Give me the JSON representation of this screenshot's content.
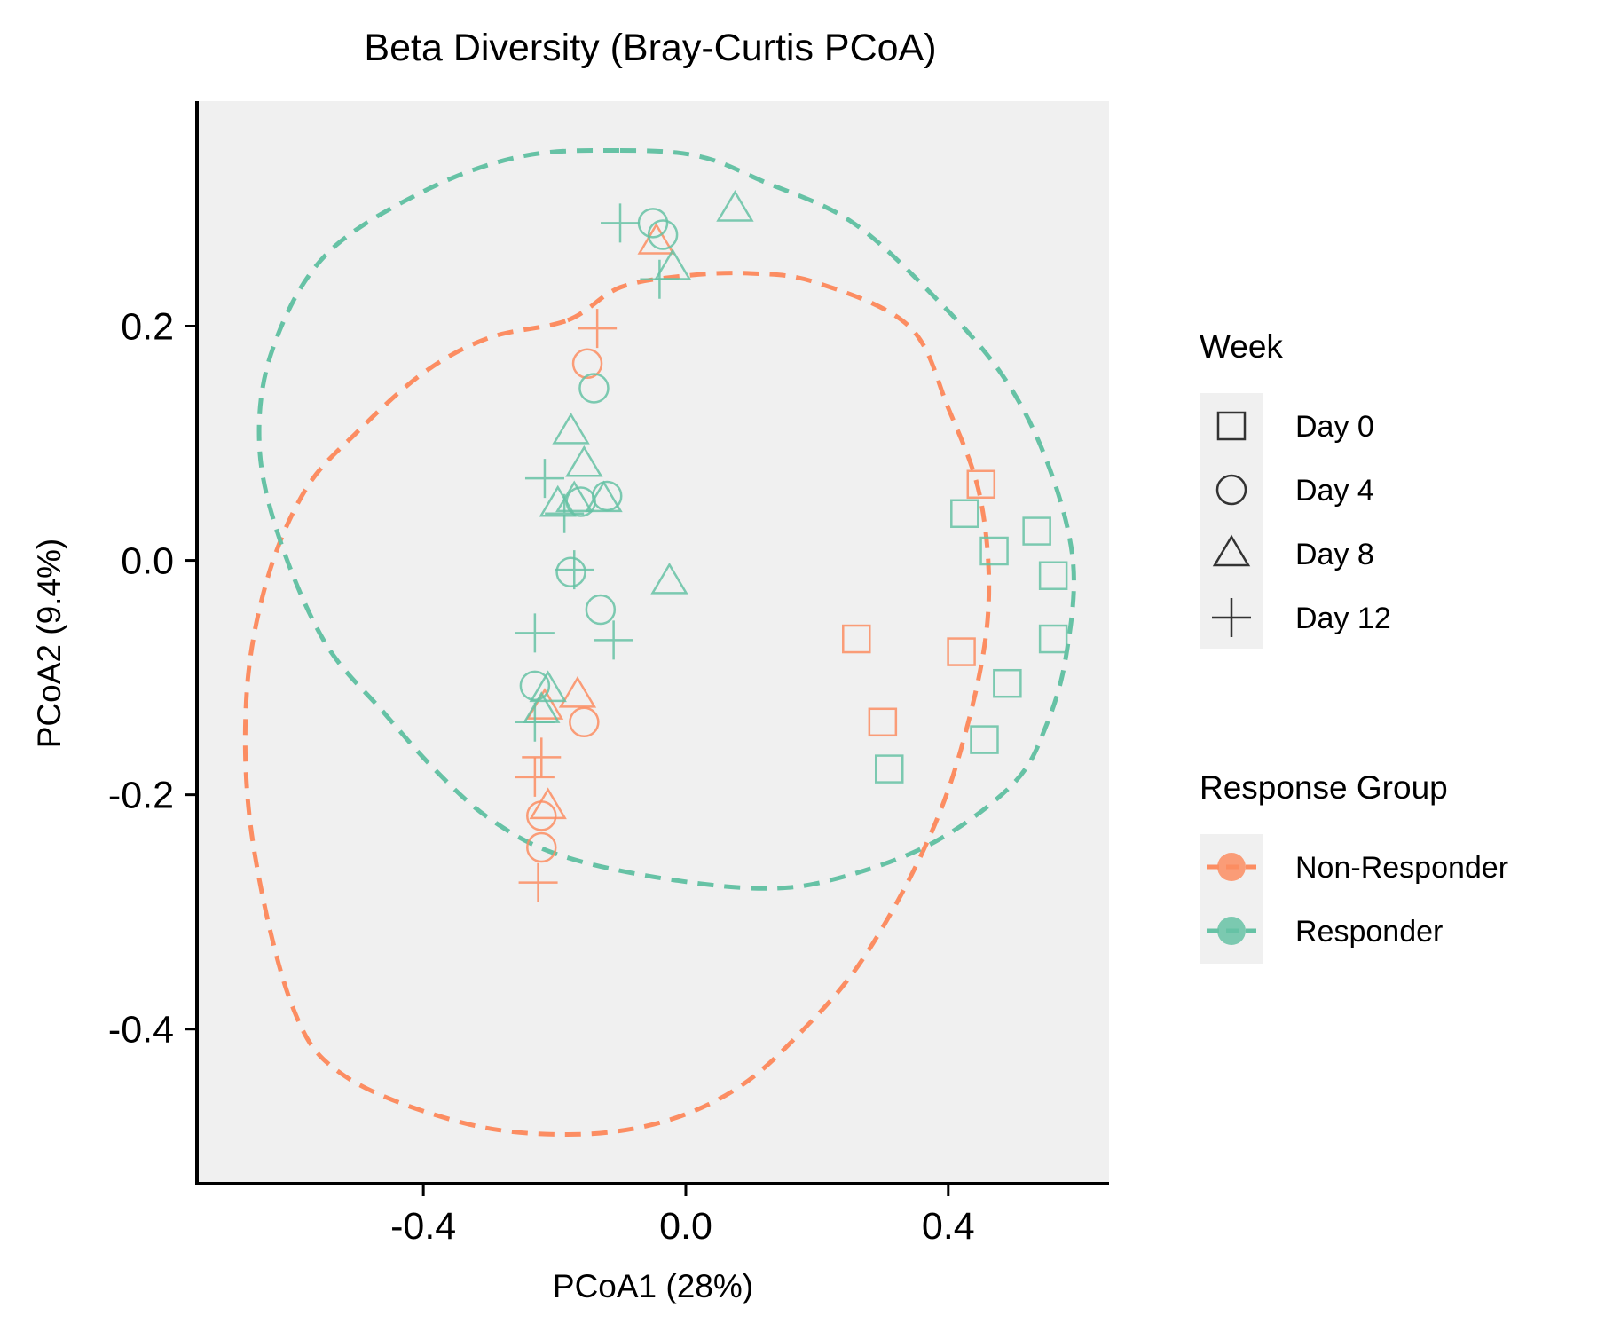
{
  "chart_data": {
    "type": "scatter",
    "title": "Beta Diversity (Bray-Curtis PCoA)",
    "xlabel": "PCoA1 (28%)",
    "ylabel": "PCoA2 (9.4%)",
    "xlim": [
      -0.745,
      0.645
    ],
    "ylim": [
      -0.532,
      0.392
    ],
    "x_ticks": [
      -0.4,
      0.0,
      0.4
    ],
    "y_ticks": [
      0.2,
      0.0,
      -0.2,
      -0.4
    ],
    "x_tick_labels": [
      "-0.4",
      "0.0",
      "0.4"
    ],
    "y_tick_labels": [
      "0.2",
      "0.0",
      "-0.2",
      "-0.4"
    ],
    "panel_background": "#f0f0f0",
    "grid": false,
    "legend_placement": "right",
    "colors": {
      "Non-Responder": "#fc8d62",
      "Responder": "#66c2a5"
    },
    "legends": {
      "shape": {
        "title": "Week",
        "entries": [
          {
            "label": "Day 0",
            "shape": "square"
          },
          {
            "label": "Day 4",
            "shape": "circle"
          },
          {
            "label": "Day 8",
            "shape": "triangle"
          },
          {
            "label": "Day 12",
            "shape": "plus"
          }
        ]
      },
      "color": {
        "title": "Response Group",
        "entries": [
          {
            "label": "Non-Responder",
            "color": "#fc8d62"
          },
          {
            "label": "Responder",
            "color": "#66c2a5"
          }
        ]
      }
    },
    "ellipses": [
      {
        "group": "Non-Responder",
        "points": [
          [
            -0.18,
            0.205
          ],
          [
            -0.1,
            0.233
          ],
          [
            0.0,
            0.243
          ],
          [
            0.1,
            0.245
          ],
          [
            0.2,
            0.237
          ],
          [
            0.34,
            0.2
          ],
          [
            0.4,
            0.13
          ],
          [
            0.45,
            0.05
          ],
          [
            0.46,
            -0.05
          ],
          [
            0.42,
            -0.16
          ],
          [
            0.36,
            -0.25
          ],
          [
            0.27,
            -0.34
          ],
          [
            0.18,
            -0.4
          ],
          [
            0.08,
            -0.45
          ],
          [
            -0.04,
            -0.48
          ],
          [
            -0.18,
            -0.49
          ],
          [
            -0.34,
            -0.48
          ],
          [
            -0.52,
            -0.44
          ],
          [
            -0.6,
            -0.38
          ],
          [
            -0.66,
            -0.24
          ],
          [
            -0.67,
            -0.12
          ],
          [
            -0.64,
            -0.02
          ],
          [
            -0.58,
            0.06
          ],
          [
            -0.5,
            0.11
          ],
          [
            -0.4,
            0.16
          ],
          [
            -0.3,
            0.19
          ]
        ]
      },
      {
        "group": "Responder",
        "points": [
          [
            -0.1,
            0.35
          ],
          [
            0.02,
            0.345
          ],
          [
            0.12,
            0.323
          ],
          [
            0.25,
            0.29
          ],
          [
            0.37,
            0.23
          ],
          [
            0.48,
            0.16
          ],
          [
            0.55,
            0.085
          ],
          [
            0.59,
            -0.0
          ],
          [
            0.58,
            -0.08
          ],
          [
            0.55,
            -0.14
          ],
          [
            0.5,
            -0.19
          ],
          [
            0.38,
            -0.24
          ],
          [
            0.24,
            -0.27
          ],
          [
            0.12,
            -0.28
          ],
          [
            -0.05,
            -0.27
          ],
          [
            -0.2,
            -0.25
          ],
          [
            -0.3,
            -0.22
          ],
          [
            -0.38,
            -0.18
          ],
          [
            -0.46,
            -0.13
          ],
          [
            -0.55,
            -0.07
          ],
          [
            -0.62,
            0.02
          ],
          [
            -0.65,
            0.1
          ],
          [
            -0.63,
            0.18
          ],
          [
            -0.55,
            0.26
          ],
          [
            -0.4,
            0.315
          ],
          [
            -0.25,
            0.345
          ]
        ]
      }
    ],
    "series": [
      {
        "name": "Non-Responder",
        "color": "#fc8d62",
        "points": [
          {
            "x": 0.45,
            "y": 0.065,
            "week": "Day 0"
          },
          {
            "x": 0.26,
            "y": -0.067,
            "week": "Day 0"
          },
          {
            "x": 0.42,
            "y": -0.078,
            "week": "Day 0"
          },
          {
            "x": 0.3,
            "y": -0.138,
            "week": "Day 0"
          },
          {
            "x": -0.15,
            "y": 0.168,
            "week": "Day 4"
          },
          {
            "x": -0.155,
            "y": -0.138,
            "week": "Day 4"
          },
          {
            "x": -0.22,
            "y": -0.218,
            "week": "Day 4"
          },
          {
            "x": -0.22,
            "y": -0.245,
            "week": "Day 4"
          },
          {
            "x": -0.045,
            "y": 0.272,
            "week": "Day 8"
          },
          {
            "x": -0.165,
            "y": -0.115,
            "week": "Day 8"
          },
          {
            "x": -0.215,
            "y": -0.125,
            "week": "Day 8"
          },
          {
            "x": -0.21,
            "y": -0.21,
            "week": "Day 8"
          },
          {
            "x": -0.135,
            "y": 0.198,
            "week": "Day 12"
          },
          {
            "x": -0.22,
            "y": -0.168,
            "week": "Day 12"
          },
          {
            "x": -0.23,
            "y": -0.185,
            "week": "Day 12"
          },
          {
            "x": -0.225,
            "y": -0.275,
            "week": "Day 12"
          }
        ]
      },
      {
        "name": "Responder",
        "color": "#66c2a5",
        "points": [
          {
            "x": 0.425,
            "y": 0.04,
            "week": "Day 0"
          },
          {
            "x": 0.47,
            "y": 0.008,
            "week": "Day 0"
          },
          {
            "x": 0.535,
            "y": 0.025,
            "week": "Day 0"
          },
          {
            "x": 0.56,
            "y": -0.013,
            "week": "Day 0"
          },
          {
            "x": 0.56,
            "y": -0.067,
            "week": "Day 0"
          },
          {
            "x": 0.49,
            "y": -0.105,
            "week": "Day 0"
          },
          {
            "x": 0.455,
            "y": -0.153,
            "week": "Day 0"
          },
          {
            "x": 0.31,
            "y": -0.178,
            "week": "Day 0"
          },
          {
            "x": -0.05,
            "y": 0.288,
            "week": "Day 4"
          },
          {
            "x": -0.035,
            "y": 0.278,
            "week": "Day 4"
          },
          {
            "x": -0.14,
            "y": 0.147,
            "week": "Day 4"
          },
          {
            "x": -0.16,
            "y": 0.05,
            "week": "Day 4"
          },
          {
            "x": -0.12,
            "y": 0.055,
            "week": "Day 4"
          },
          {
            "x": -0.175,
            "y": -0.01,
            "week": "Day 4"
          },
          {
            "x": -0.13,
            "y": -0.042,
            "week": "Day 4"
          },
          {
            "x": -0.23,
            "y": -0.107,
            "week": "Day 4"
          },
          {
            "x": 0.075,
            "y": 0.3,
            "week": "Day 8"
          },
          {
            "x": -0.02,
            "y": 0.25,
            "week": "Day 8"
          },
          {
            "x": -0.175,
            "y": 0.11,
            "week": "Day 8"
          },
          {
            "x": -0.155,
            "y": 0.082,
            "week": "Day 8"
          },
          {
            "x": -0.17,
            "y": 0.052,
            "week": "Day 8"
          },
          {
            "x": -0.125,
            "y": 0.052,
            "week": "Day 8"
          },
          {
            "x": -0.195,
            "y": 0.048,
            "week": "Day 8"
          },
          {
            "x": -0.025,
            "y": -0.018,
            "week": "Day 8"
          },
          {
            "x": -0.21,
            "y": -0.11,
            "week": "Day 8"
          },
          {
            "x": -0.22,
            "y": -0.128,
            "week": "Day 8"
          },
          {
            "x": -0.1,
            "y": 0.288,
            "week": "Day 12"
          },
          {
            "x": -0.04,
            "y": 0.24,
            "week": "Day 12"
          },
          {
            "x": -0.215,
            "y": 0.07,
            "week": "Day 12"
          },
          {
            "x": -0.185,
            "y": 0.04,
            "week": "Day 12"
          },
          {
            "x": -0.17,
            "y": -0.008,
            "week": "Day 12"
          },
          {
            "x": -0.23,
            "y": -0.062,
            "week": "Day 12"
          },
          {
            "x": -0.11,
            "y": -0.068,
            "week": "Day 12"
          },
          {
            "x": -0.23,
            "y": -0.138,
            "week": "Day 12"
          }
        ]
      }
    ]
  }
}
